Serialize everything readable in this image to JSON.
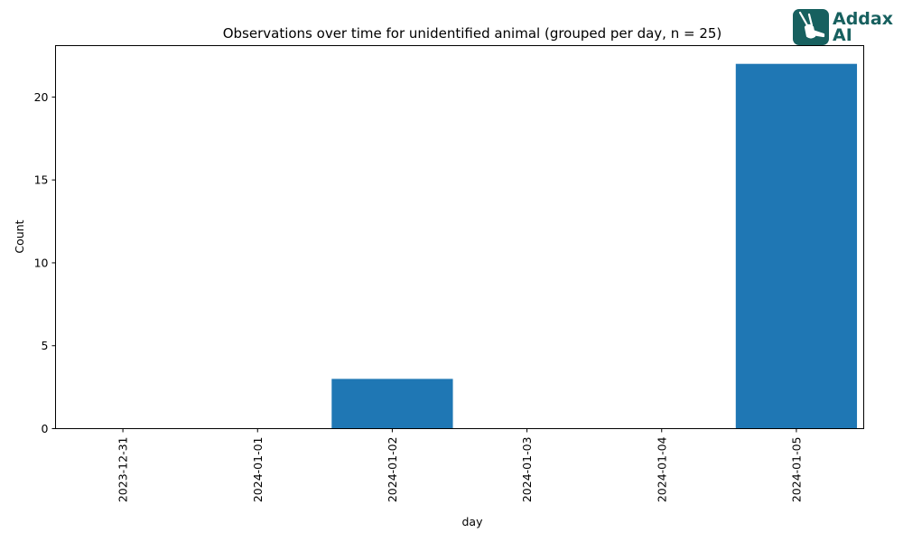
{
  "chart_data": {
    "type": "bar",
    "title": "Observations over time for unidentified animal (grouped per day, n = 25)",
    "xlabel": "day",
    "ylabel": "Count",
    "categories": [
      "2023-12-31",
      "2024-01-01",
      "2024-01-02",
      "2024-01-03",
      "2024-01-04",
      "2024-01-05"
    ],
    "values": [
      0,
      0,
      3,
      0,
      0,
      22
    ],
    "ylim": [
      0,
      23.1
    ],
    "yticks": [
      0,
      5,
      10,
      15,
      20
    ],
    "grid": false,
    "bar_color": "#1f77b4"
  },
  "brand": {
    "line1": "Addax",
    "line2": "AI",
    "color": "#17605f"
  }
}
